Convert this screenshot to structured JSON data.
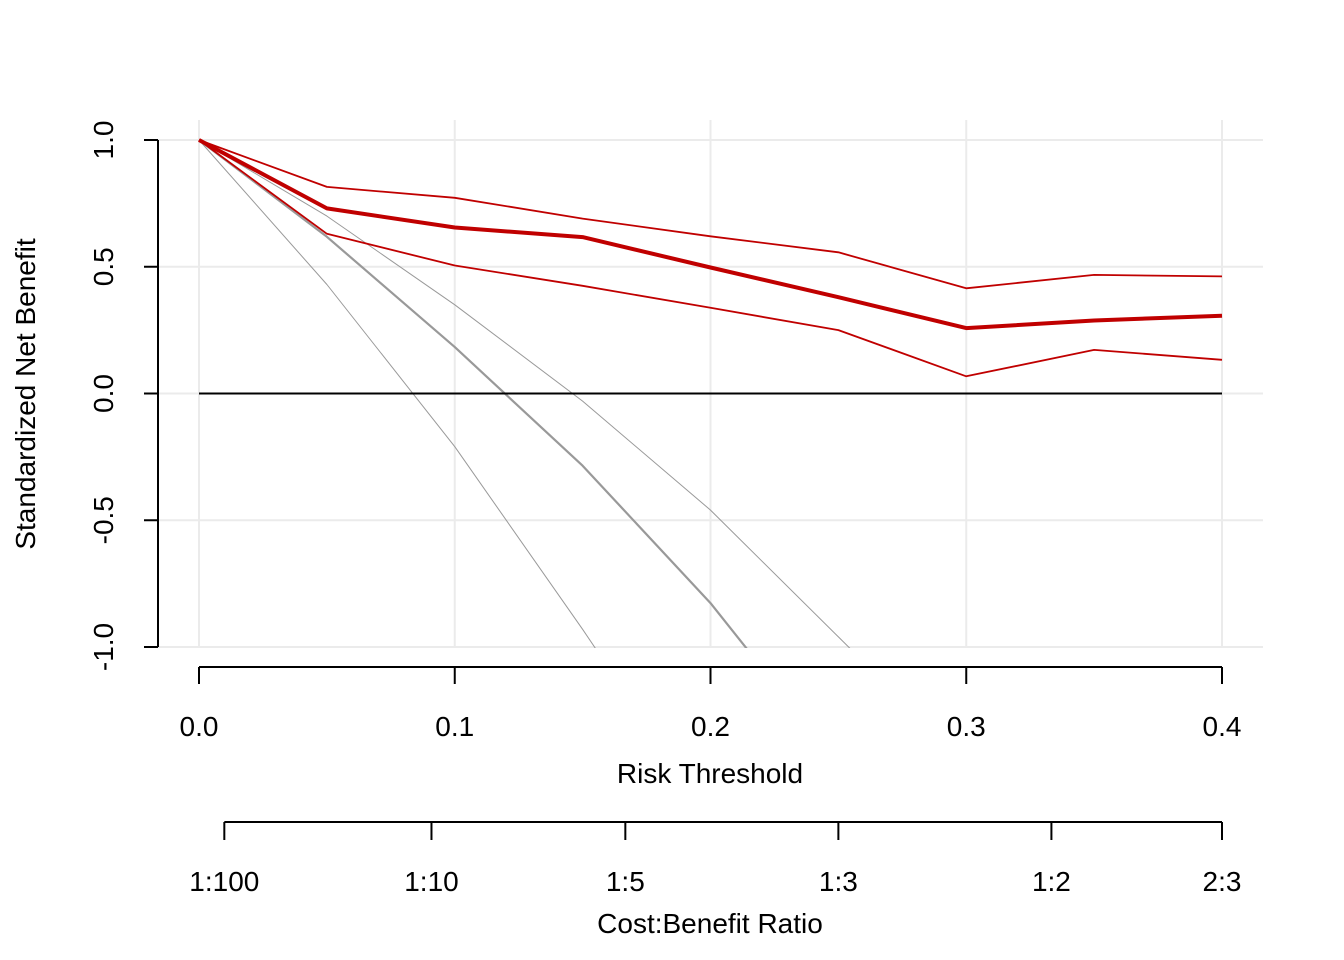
{
  "chart_data": {
    "type": "line",
    "xlabel": "Risk Threshold",
    "ylabel": "Standardized Net Benefit",
    "xlim": [
      0,
      0.4
    ],
    "ylim": [
      -1.0,
      1.0
    ],
    "x_ticks": [
      "0.0",
      "0.1",
      "0.2",
      "0.3",
      "0.4"
    ],
    "y_ticks": [
      "-1.0",
      "-0.5",
      "0.0",
      "0.5",
      "1.0"
    ],
    "grid": true,
    "secondary_axis": {
      "label": "Cost:Benefit Ratio",
      "ticks": [
        {
          "label": "1:100",
          "threshold": 0.0099
        },
        {
          "label": "1:10",
          "threshold": 0.0909
        },
        {
          "label": "1:5",
          "threshold": 0.1667
        },
        {
          "label": "1:3",
          "threshold": 0.25
        },
        {
          "label": "1:2",
          "threshold": 0.3333
        },
        {
          "label": "2:3",
          "threshold": 0.4
        }
      ]
    },
    "series": [
      {
        "role": "model",
        "color": "#c00000",
        "x": [
          0,
          0.05,
          0.1,
          0.15,
          0.2,
          0.25,
          0.3,
          0.35,
          0.4
        ],
        "values": [
          1.0,
          0.73,
          0.655,
          0.617,
          0.497,
          0.38,
          0.258,
          0.288,
          0.307
        ]
      },
      {
        "role": "model-upper",
        "color": "#c00000",
        "x": [
          0,
          0.05,
          0.1,
          0.15,
          0.2,
          0.25,
          0.3,
          0.35,
          0.4
        ],
        "values": [
          1.0,
          0.815,
          0.772,
          0.69,
          0.62,
          0.557,
          0.415,
          0.468,
          0.462
        ]
      },
      {
        "role": "model-lower",
        "color": "#c00000",
        "x": [
          0,
          0.05,
          0.1,
          0.15,
          0.2,
          0.25,
          0.3,
          0.35,
          0.4
        ],
        "values": [
          1.0,
          0.63,
          0.505,
          0.425,
          0.338,
          0.25,
          0.068,
          0.172,
          0.133
        ]
      },
      {
        "role": "treat-all",
        "color": "#999999",
        "x": [
          0,
          0.05,
          0.1,
          0.15,
          0.2,
          0.22
        ],
        "values": [
          1.0,
          0.618,
          0.183,
          -0.285,
          -0.827,
          -1.08
        ]
      },
      {
        "role": "treat-all-upper",
        "color": "#999999",
        "x": [
          0,
          0.05,
          0.1,
          0.15,
          0.2,
          0.25,
          0.262
        ],
        "values": [
          1.0,
          0.7,
          0.35,
          -0.03,
          -0.46,
          -0.96,
          -1.08
        ]
      },
      {
        "role": "treat-all-lower",
        "color": "#999999",
        "x": [
          0,
          0.05,
          0.1,
          0.15,
          0.16
        ],
        "values": [
          1.0,
          0.43,
          -0.21,
          -0.93,
          -1.08
        ]
      },
      {
        "role": "treat-none",
        "color": "#000000",
        "x": [
          0,
          0.4
        ],
        "values": [
          0,
          0
        ]
      }
    ]
  }
}
